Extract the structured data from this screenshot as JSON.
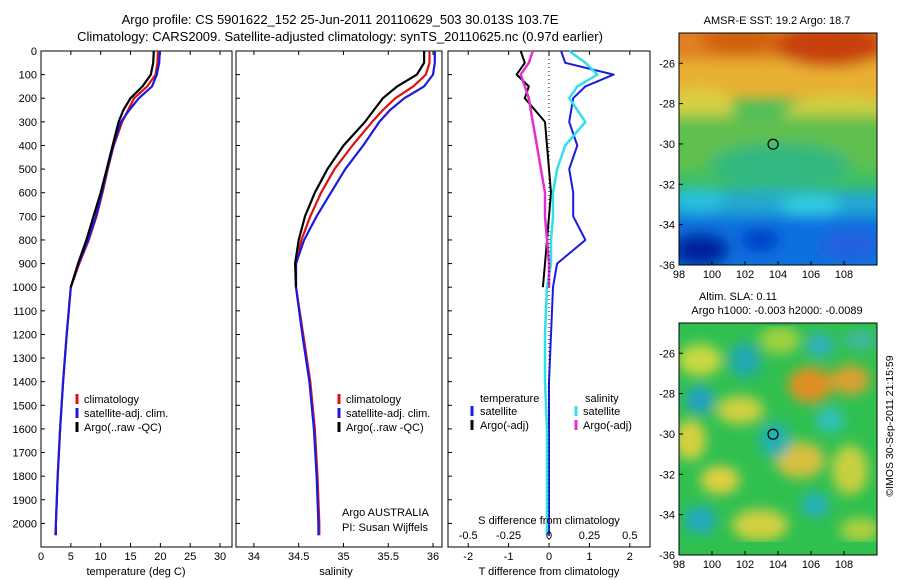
{
  "header": {
    "line1": "Argo profile: CS 5901622_152 25-Jun-2011 20110629_503 30.013S 103.7E",
    "line2": "Climatology: CARS2009. Satellite-adjusted climatology: synTS_20110625.nc (0.97d earlier)"
  },
  "colors": {
    "climatology": "#e01010",
    "satellite": "#1a1ae0",
    "argo": "#000000",
    "satellite_salinity": "#30e0e8",
    "argo_salinity": "#e030d0"
  },
  "chart_data": [
    {
      "type": "line",
      "panel": "temperature",
      "xlabel": "temperature (deg C)",
      "ylabel": "",
      "xlim": [
        0,
        32
      ],
      "ylim": [
        2100,
        0
      ],
      "x_ticks": [
        0,
        5,
        10,
        15,
        20,
        25,
        30
      ],
      "y_ticks": [
        0,
        100,
        200,
        300,
        400,
        500,
        600,
        700,
        800,
        900,
        1000,
        1100,
        1200,
        1300,
        1400,
        1500,
        1600,
        1700,
        1800,
        1900,
        2000
      ],
      "depth": [
        0,
        50,
        100,
        150,
        200,
        250,
        300,
        400,
        500,
        600,
        700,
        800,
        900,
        1000,
        1200,
        1400,
        1600,
        1800,
        2000,
        2050
      ],
      "series": [
        {
          "name": "climatology",
          "values": [
            19.6,
            19.5,
            19.2,
            17.8,
            15.6,
            14.6,
            13.6,
            12.2,
            11.2,
            10.3,
            9.3,
            8.0,
            6.4,
            5.0,
            4.3,
            3.7,
            3.2,
            2.8,
            2.5,
            2.4
          ]
        },
        {
          "name": "satellite-adj. clim.",
          "values": [
            19.9,
            19.8,
            19.4,
            18.6,
            16.4,
            14.8,
            13.4,
            12.1,
            11.1,
            10.2,
            9.2,
            7.9,
            6.3,
            5.0,
            4.3,
            3.7,
            3.2,
            2.8,
            2.5,
            2.5
          ]
        },
        {
          "name": "Argo(..raw -QC)",
          "values": [
            18.9,
            18.8,
            18.4,
            17.0,
            15.0,
            13.8,
            13.0,
            12.0,
            11.0,
            10.0,
            8.8,
            7.6,
            6.2,
            5.0,
            null,
            null,
            null,
            null,
            null,
            null
          ]
        }
      ],
      "legend": [
        "climatology",
        "satellite-adj. clim.",
        "Argo(..raw -QC)"
      ]
    },
    {
      "type": "line",
      "panel": "salinity",
      "xlabel": "salinity",
      "ylabel": "",
      "xlim": [
        33.8,
        36.1
      ],
      "ylim": [
        2100,
        0
      ],
      "x_ticks": [
        34,
        34.5,
        35,
        35.5,
        36
      ],
      "depth": [
        0,
        50,
        100,
        150,
        200,
        250,
        300,
        400,
        500,
        600,
        700,
        800,
        900,
        1000,
        1200,
        1400,
        1600,
        1800,
        2000,
        2050
      ],
      "series": [
        {
          "name": "climatology",
          "values": [
            35.96,
            35.96,
            35.92,
            35.78,
            35.58,
            35.44,
            35.32,
            35.1,
            34.9,
            34.75,
            34.63,
            34.53,
            34.47,
            34.47,
            34.55,
            34.63,
            34.68,
            34.71,
            34.73,
            34.73
          ]
        },
        {
          "name": "satellite-adj. clim.",
          "values": [
            36.02,
            36.02,
            36.0,
            35.9,
            35.68,
            35.52,
            35.4,
            35.22,
            35.02,
            34.86,
            34.7,
            34.56,
            34.47,
            34.47,
            34.54,
            34.62,
            34.67,
            34.7,
            34.72,
            34.72
          ]
        },
        {
          "name": "Argo(..raw -QC)",
          "values": [
            35.9,
            35.9,
            35.82,
            35.6,
            35.44,
            35.34,
            35.24,
            35.0,
            34.82,
            34.68,
            34.57,
            34.5,
            34.46,
            34.47,
            null,
            null,
            null,
            null,
            null,
            null
          ]
        }
      ],
      "legend": [
        "climatology",
        "satellite-adj. clim.",
        "Argo(..raw -QC)"
      ],
      "annotation": {
        "line1": "Argo AUSTRALIA",
        "line2": "PI: Susan Wijffels"
      }
    },
    {
      "type": "line",
      "panel": "difference",
      "xlabel": "T difference from climatology",
      "xlabel_top": "S difference from climatology",
      "ylabel": "",
      "xlim": [
        -2.5,
        2.5
      ],
      "ylim": [
        2100,
        0
      ],
      "x_ticks": [
        -2,
        -1,
        0,
        1,
        2
      ],
      "x_ticks_top": [
        -0.5,
        -0.25,
        0,
        0.25,
        0.5
      ],
      "depth": [
        0,
        50,
        100,
        150,
        200,
        300,
        400,
        500,
        600,
        700,
        800,
        900,
        1000,
        1200,
        1400,
        1600,
        1800,
        2000,
        2050
      ],
      "series": [
        {
          "name": "temperature satellite",
          "values": [
            0.3,
            0.4,
            1.6,
            0.9,
            0.6,
            0.5,
            0.7,
            0.5,
            0.6,
            0.6,
            0.9,
            0.2,
            0.1,
            0.05,
            0.0,
            0.0,
            0.0,
            0.0,
            0.0
          ]
        },
        {
          "name": "temperature Argo(-adj)",
          "values": [
            -0.7,
            -0.6,
            -0.8,
            -0.5,
            -0.6,
            -0.1,
            -0.05,
            0.0,
            0.05,
            0.0,
            -0.05,
            -0.1,
            -0.15,
            null,
            null,
            null,
            null,
            null,
            null
          ]
        },
        {
          "name": "salinity satellite",
          "values": [
            0.5,
            0.9,
            1.2,
            0.7,
            0.5,
            0.9,
            0.4,
            0.2,
            0.1,
            0.1,
            0.05,
            0.05,
            -0.05,
            -0.1,
            -0.1,
            -0.05,
            -0.05,
            -0.05,
            -0.05
          ]
        },
        {
          "name": "salinity Argo(-adj)",
          "values": [
            -0.4,
            -0.5,
            -0.7,
            -0.6,
            -0.5,
            -0.4,
            -0.3,
            -0.2,
            -0.1,
            -0.1,
            -0.05,
            0.0,
            0.0,
            null,
            null,
            null,
            null,
            null,
            null
          ]
        }
      ],
      "legend_temperature": {
        "title": "temperature",
        "items": [
          "satellite",
          "Argo(-adj)"
        ]
      },
      "legend_salinity": {
        "title": "salinity",
        "items": [
          "satellite",
          "Argo(-adj)"
        ]
      }
    },
    {
      "type": "heatmap",
      "panel": "sst_map",
      "title": "AMSR-E SST: 19.2  Argo: 18.7",
      "xlim": [
        98,
        110
      ],
      "ylim": [
        -36,
        -24.5
      ],
      "x_ticks": [
        98,
        100,
        102,
        104,
        106,
        108
      ],
      "y_ticks": [
        -26,
        -28,
        -30,
        -32,
        -34,
        -36
      ],
      "marker": {
        "lon": 103.7,
        "lat": -30.013
      }
    },
    {
      "type": "heatmap",
      "panel": "sla_map",
      "title_line1": "Altim. SLA: 0.11",
      "title_line2": "Argo h1000: -0.003 h2000: -0.0089",
      "xlim": [
        98,
        110
      ],
      "ylim": [
        -36,
        -24.5
      ],
      "x_ticks": [
        98,
        100,
        102,
        104,
        106,
        108
      ],
      "y_ticks": [
        -26,
        -28,
        -30,
        -32,
        -34,
        -36
      ],
      "marker": {
        "lon": 103.7,
        "lat": -30.013
      }
    }
  ],
  "footer": {
    "stamp": "©IMOS 30-Sep-2011 21:15:59"
  }
}
